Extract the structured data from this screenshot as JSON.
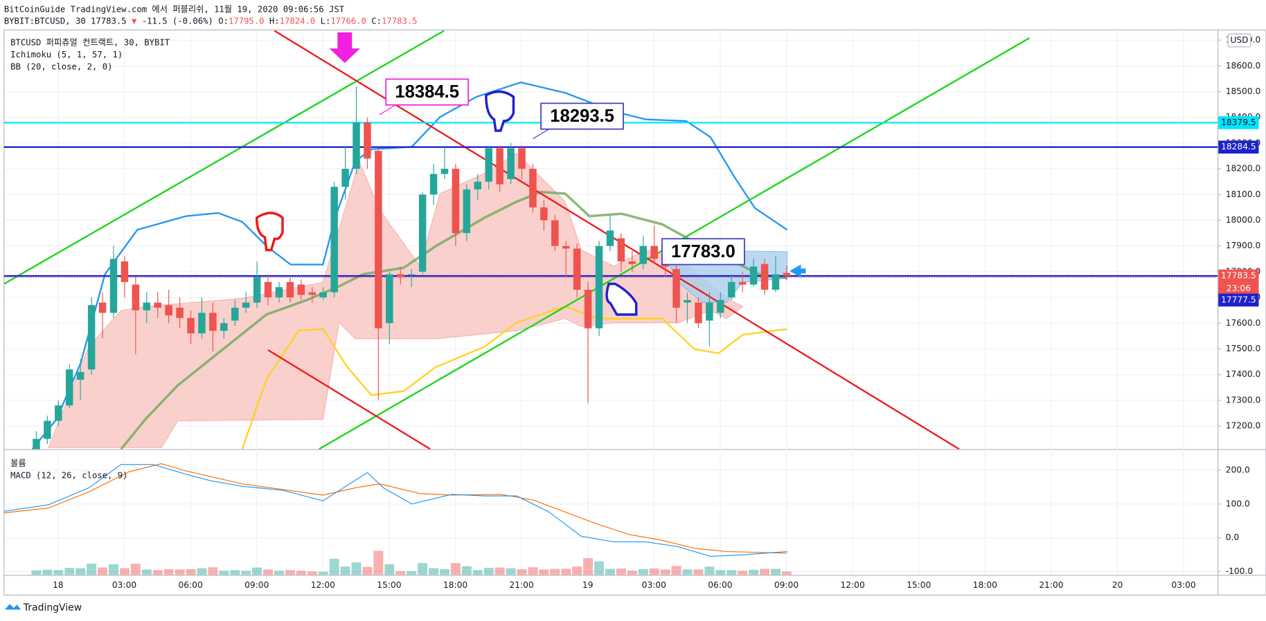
{
  "header": {
    "publisher": "BitCoinGuide TradingView.com 에서 퍼블리쉬, 11월 19, 2020 09:06:56 JST",
    "symbol": "BYBIT:BTCUSD, 30 17783.5",
    "arrow": "▼",
    "change": "-11.5 (-0.06%)",
    "o_label": "O:",
    "o": "17795.0",
    "h_label": "H:",
    "h": "17824.0",
    "l_label": "L:",
    "l": "17766.0",
    "c_label": "C:",
    "c": "17783.5"
  },
  "legend": [
    "BTCUSD 퍼피츄얼 컨트랙트, 30, BYBIT",
    "Ichimoku (5, 1, 57, 1)",
    "BB (20, close, 2, 0)"
  ],
  "chart_data": {
    "type": "candlestick",
    "currency": "USD",
    "up_color": "#26a69a",
    "down_color": "#ef5350",
    "open": [
      17110,
      17150,
      17220,
      17280,
      17380,
      17420,
      17680,
      17640,
      17840,
      17750,
      17650,
      17680,
      17670,
      17660,
      17620,
      17560,
      17640,
      17570,
      17610,
      17660,
      17680,
      17760,
      17700,
      17760,
      17750,
      17720,
      17700,
      17720,
      18130,
      18200,
      18380,
      18270,
      17600,
      17790,
      17790,
      17800,
      18100,
      18180,
      18200,
      17950,
      18120,
      18150,
      18280,
      18160,
      18280,
      18200,
      18050,
      18000,
      17900,
      17890,
      17730,
      17580,
      17900,
      17930,
      17840,
      17830,
      17900,
      17870,
      17810,
      17680,
      17680,
      17610,
      17640,
      17700,
      17760,
      17750,
      17830,
      17730,
      17795
    ],
    "high": [
      17180,
      17240,
      17300,
      17440,
      17460,
      17700,
      17720,
      17900,
      17860,
      17780,
      17720,
      17720,
      17730,
      17700,
      17650,
      17700,
      17680,
      17620,
      17690,
      17720,
      17840,
      17790,
      17760,
      17780,
      17770,
      17740,
      17740,
      18150,
      18290,
      18520,
      18400,
      18280,
      17800,
      17820,
      17810,
      18110,
      18220,
      18290,
      18220,
      18140,
      18180,
      18290,
      18290,
      18300,
      18290,
      18220,
      18080,
      18020,
      17920,
      17910,
      17760,
      17920,
      18020,
      17950,
      17880,
      17940,
      17980,
      17900,
      17830,
      17720,
      17700,
      17720,
      17720,
      17790,
      17800,
      17850,
      17850,
      17860,
      17824
    ],
    "low": [
      17090,
      17130,
      17200,
      17270,
      17300,
      17400,
      17540,
      17620,
      17700,
      17480,
      17600,
      17620,
      17600,
      17580,
      17520,
      17540,
      17490,
      17540,
      17590,
      17640,
      17660,
      17670,
      17680,
      17680,
      17690,
      17680,
      17690,
      17700,
      18080,
      18180,
      18200,
      17300,
      17520,
      17750,
      17740,
      17790,
      18060,
      18160,
      17900,
      17920,
      18080,
      18120,
      18110,
      18140,
      18160,
      18030,
      17960,
      17880,
      17780,
      17700,
      17290,
      17550,
      17880,
      17800,
      17800,
      17810,
      17830,
      17780,
      17600,
      17600,
      17580,
      17510,
      17620,
      17690,
      17720,
      17740,
      17710,
      17720,
      17766
    ],
    "close": [
      17150,
      17220,
      17280,
      17420,
      17410,
      17670,
      17640,
      17850,
      17760,
      17650,
      17680,
      17660,
      17630,
      17620,
      17560,
      17640,
      17570,
      17600,
      17660,
      17680,
      17780,
      17700,
      17740,
      17700,
      17710,
      17710,
      17720,
      18130,
      18200,
      18380,
      18240,
      17580,
      17790,
      17780,
      17790,
      18100,
      18180,
      18200,
      17950,
      18120,
      18150,
      18280,
      18140,
      18280,
      18200,
      18050,
      18000,
      17900,
      17890,
      17730,
      17580,
      17900,
      17960,
      17840,
      17830,
      17900,
      17850,
      17820,
      17660,
      17690,
      17600,
      17680,
      17690,
      17760,
      17750,
      17820,
      17730,
      17790,
      17783.5
    ],
    "ylim": [
      17110,
      18740
    ],
    "yticks": [
      {
        "value": 17200,
        "label": "17200.0"
      },
      {
        "value": 17300,
        "label": "17300.0"
      },
      {
        "value": 17400,
        "label": "17400.0"
      },
      {
        "value": 17500,
        "label": "17500.0"
      },
      {
        "value": 17600,
        "label": "17600.0"
      },
      {
        "value": 17700,
        "label": "17700.0"
      },
      {
        "value": 17800,
        "label": "17800.0"
      },
      {
        "value": 17900,
        "label": "17900.0"
      },
      {
        "value": 18000,
        "label": "18000.0"
      },
      {
        "value": 18100,
        "label": "18100.0"
      },
      {
        "value": 18200,
        "label": "18200.0"
      },
      {
        "value": 18300,
        "label": "18300.0"
      },
      {
        "value": 18400,
        "label": "18400.0"
      },
      {
        "value": 18500,
        "label": "18500.0"
      },
      {
        "value": 18600,
        "label": "18600.0"
      },
      {
        "value": 18700,
        "label": "18700.0"
      }
    ],
    "time_labels": [
      "18",
      "03:00",
      "06:00",
      "09:00",
      "12:00",
      "15:00",
      "18:00",
      "21:00",
      "19",
      "03:00",
      "06:00",
      "09:00",
      "12:00",
      "15:00",
      "18:00",
      "21:00",
      "20",
      "03:00"
    ],
    "hlines": [
      {
        "value": 18379.5,
        "color": "#00e5ff"
      },
      {
        "value": 18284.5,
        "color": "#1e22cc"
      },
      {
        "value": 17783.5,
        "color": "#1e22cc"
      }
    ],
    "last_price": {
      "value": 17783.5,
      "timer": "23:06",
      "color": "#ef5350"
    },
    "extra_price": {
      "value": 17777.5,
      "color": "#1e22cc"
    },
    "callouts": [
      "18384.5",
      "18293.5",
      "17783.0"
    ],
    "macd_pane": {
      "labels": [
        "볼륨",
        "MACD (12, 26, close, 9)"
      ],
      "ylim": [
        -110,
        260
      ],
      "yticks": [
        {
          "value": 200,
          "label": "200.0"
        },
        {
          "value": 100,
          "label": "100.0"
        },
        {
          "value": 0,
          "label": "0.0"
        },
        {
          "value": -100,
          "label": "-100.0"
        }
      ]
    },
    "grid": true
  },
  "footer": "TradingView"
}
